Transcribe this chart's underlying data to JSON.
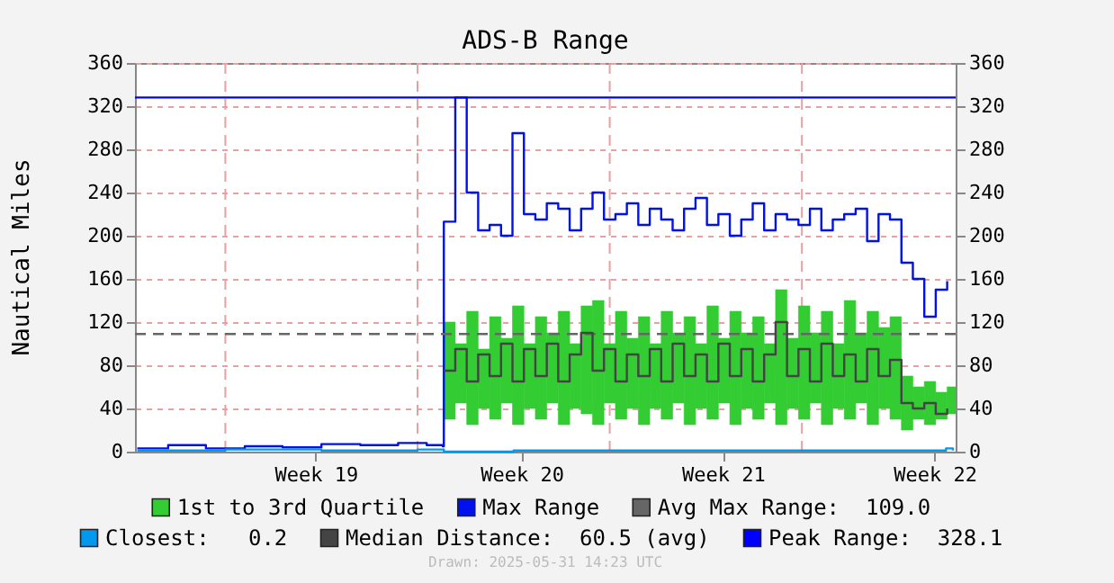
{
  "chart_data": {
    "type": "step",
    "title": "ADS-B Range",
    "ylabel": "Nautical Miles",
    "xlim": [
      "2025-05-01T17:00",
      "2025-05-31T14:23"
    ],
    "xticks": [
      {
        "value": "2025-05-08T07:00",
        "label": "Week 19"
      },
      {
        "value": "2025-05-15T19:00",
        "label": "Week 20"
      },
      {
        "value": "2025-05-23T03:00",
        "label": "Week 21"
      },
      {
        "value": "2025-05-30T20:00",
        "label": "Week 22"
      }
    ],
    "ylim": [
      0,
      360
    ],
    "yticks": [
      0,
      40,
      80,
      120,
      160,
      200,
      240,
      280,
      320,
      360
    ],
    "y2lim": [
      0,
      360
    ],
    "y2ticks": [
      0,
      40,
      80,
      120,
      160,
      200,
      240,
      280,
      320,
      360
    ],
    "grid": "y",
    "legend": "bottom",
    "ref_lines": [
      {
        "axis": "x",
        "value": "2025-05-05T00:00",
        "color": "#e8a0a0",
        "line_style": "dashed"
      },
      {
        "axis": "x",
        "value": "2025-05-12T00:00",
        "color": "#e8a0a0",
        "line_style": "dashed"
      },
      {
        "axis": "x",
        "value": "2025-05-19T00:00",
        "color": "#e8a0a0",
        "line_style": "dashed"
      },
      {
        "axis": "x",
        "value": "2025-05-26T00:00",
        "color": "#e8a0a0",
        "line_style": "dashed"
      }
    ],
    "series": [
      {
        "name": "1st to 3rd Quartile",
        "type": "bar",
        "color": "#33cc33",
        "x": [
          "2025-05-12T23:00",
          "2025-05-13T09:00",
          "2025-05-13T19:00",
          "2025-05-14T05:00",
          "2025-05-14T15:00",
          "2025-05-15T01:00",
          "2025-05-15T11:00",
          "2025-05-15T21:00",
          "2025-05-16T07:00",
          "2025-05-16T17:00",
          "2025-05-17T03:00",
          "2025-05-17T13:00",
          "2025-05-17T23:00",
          "2025-05-18T09:00",
          "2025-05-18T19:00",
          "2025-05-19T05:00",
          "2025-05-19T15:00",
          "2025-05-20T01:00",
          "2025-05-20T11:00",
          "2025-05-20T21:00",
          "2025-05-21T07:00",
          "2025-05-21T17:00",
          "2025-05-22T03:00",
          "2025-05-22T13:00",
          "2025-05-22T23:00",
          "2025-05-23T09:00",
          "2025-05-23T19:00",
          "2025-05-24T05:00",
          "2025-05-24T15:00",
          "2025-05-25T01:00",
          "2025-05-25T11:00",
          "2025-05-25T21:00",
          "2025-05-26T07:00",
          "2025-05-26T17:00",
          "2025-05-27T03:00",
          "2025-05-27T13:00",
          "2025-05-27T23:00",
          "2025-05-28T09:00",
          "2025-05-28T19:00",
          "2025-05-29T05:00",
          "2025-05-29T15:00",
          "2025-05-30T01:00",
          "2025-05-30T11:00",
          "2025-05-30T21:00",
          "2025-05-31T07:00"
        ],
        "values": [
          90,
          55,
          105,
          55,
          95,
          60,
          110,
          60,
          95,
          65,
          105,
          60,
          100,
          115,
          55,
          100,
          65,
          100,
          60,
          100,
          65,
          100,
          60,
          105,
          60,
          105,
          70,
          95,
          55,
          125,
          65,
          105,
          65,
          105,
          60,
          110,
          65,
          105,
          75,
          95,
          50,
          30,
          40,
          25,
          25
        ],
        "base": [
          30,
          45,
          25,
          40,
          30,
          45,
          25,
          40,
          30,
          45,
          25,
          40,
          35,
          25,
          45,
          30,
          40,
          25,
          40,
          30,
          45,
          25,
          40,
          30,
          45,
          25,
          40,
          30,
          45,
          25,
          40,
          30,
          45,
          25,
          40,
          30,
          45,
          25,
          40,
          30,
          20,
          30,
          25,
          30,
          35
        ]
      },
      {
        "name": "Max Range",
        "color": "#0010ee",
        "x": [
          "2025-05-01T19:00",
          "2025-05-02T22:00",
          "2025-05-04T07:00",
          "2025-05-05T17:00",
          "2025-05-07T02:00",
          "2025-05-08T12:00",
          "2025-05-09T22:00",
          "2025-05-11T07:00",
          "2025-05-12T08:00",
          "2025-05-12T22:00",
          "2025-05-12T23:00",
          "2025-05-13T09:00",
          "2025-05-13T19:00",
          "2025-05-14T05:00",
          "2025-05-14T15:00",
          "2025-05-15T01:00",
          "2025-05-15T11:00",
          "2025-05-15T21:00",
          "2025-05-16T07:00",
          "2025-05-16T17:00",
          "2025-05-17T03:00",
          "2025-05-17T13:00",
          "2025-05-17T23:00",
          "2025-05-18T09:00",
          "2025-05-18T19:00",
          "2025-05-19T05:00",
          "2025-05-19T15:00",
          "2025-05-20T01:00",
          "2025-05-20T11:00",
          "2025-05-20T21:00",
          "2025-05-21T07:00",
          "2025-05-21T17:00",
          "2025-05-22T03:00",
          "2025-05-22T13:00",
          "2025-05-22T23:00",
          "2025-05-23T09:00",
          "2025-05-23T19:00",
          "2025-05-24T05:00",
          "2025-05-24T15:00",
          "2025-05-25T01:00",
          "2025-05-25T11:00",
          "2025-05-25T21:00",
          "2025-05-26T07:00",
          "2025-05-26T17:00",
          "2025-05-27T03:00",
          "2025-05-27T13:00",
          "2025-05-27T23:00",
          "2025-05-28T09:00",
          "2025-05-28T19:00",
          "2025-05-29T05:00",
          "2025-05-29T15:00",
          "2025-05-30T01:00",
          "2025-05-30T11:00",
          "2025-05-30T21:00",
          "2025-05-31T07:00"
        ],
        "values": [
          3,
          6,
          3,
          5,
          4,
          7,
          6,
          8,
          6,
          5,
          213,
          328,
          240,
          205,
          210,
          200,
          295,
          220,
          215,
          230,
          225,
          205,
          225,
          240,
          215,
          220,
          230,
          210,
          225,
          215,
          205,
          225,
          235,
          210,
          220,
          200,
          215,
          230,
          205,
          220,
          215,
          210,
          225,
          205,
          215,
          220,
          225,
          195,
          220,
          215,
          175,
          160,
          125,
          150,
          158
        ]
      },
      {
        "name": "Avg Max Range:  109.0",
        "type": "line",
        "line_style": "dashed",
        "color": "#666666",
        "x": [
          "2025-05-01T17:00",
          "2025-05-31T14:23"
        ],
        "values": [
          109,
          109
        ]
      },
      {
        "name": "Closest:   0.2",
        "color": "#0099ee",
        "x": [
          "2025-05-01T19:00",
          "2025-05-05T00:00",
          "2025-05-08T12:00",
          "2025-05-12T00:00",
          "2025-05-12T23:00",
          "2025-05-15T12:00",
          "2025-05-19T00:00",
          "2025-05-22T12:00",
          "2025-05-26T00:00",
          "2025-05-29T12:00",
          "2025-05-31T06:00",
          "2025-05-31T12:00"
        ],
        "values": [
          1,
          2,
          1,
          2,
          0,
          1,
          1,
          1,
          1,
          1,
          3,
          1
        ]
      },
      {
        "name": "Median Distance:  60.5 (avg)",
        "color": "#444444",
        "x": [
          "2025-05-12T23:00",
          "2025-05-13T09:00",
          "2025-05-13T19:00",
          "2025-05-14T05:00",
          "2025-05-14T15:00",
          "2025-05-15T01:00",
          "2025-05-15T11:00",
          "2025-05-15T21:00",
          "2025-05-16T07:00",
          "2025-05-16T17:00",
          "2025-05-17T03:00",
          "2025-05-17T13:00",
          "2025-05-17T23:00",
          "2025-05-18T09:00",
          "2025-05-18T19:00",
          "2025-05-19T05:00",
          "2025-05-19T15:00",
          "2025-05-20T01:00",
          "2025-05-20T11:00",
          "2025-05-20T21:00",
          "2025-05-21T07:00",
          "2025-05-21T17:00",
          "2025-05-22T03:00",
          "2025-05-22T13:00",
          "2025-05-22T23:00",
          "2025-05-23T09:00",
          "2025-05-23T19:00",
          "2025-05-24T05:00",
          "2025-05-24T15:00",
          "2025-05-25T01:00",
          "2025-05-25T11:00",
          "2025-05-25T21:00",
          "2025-05-26T07:00",
          "2025-05-26T17:00",
          "2025-05-27T03:00",
          "2025-05-27T13:00",
          "2025-05-27T23:00",
          "2025-05-28T09:00",
          "2025-05-28T19:00",
          "2025-05-29T05:00",
          "2025-05-29T15:00",
          "2025-05-30T01:00",
          "2025-05-30T11:00",
          "2025-05-30T21:00",
          "2025-05-31T07:00"
        ],
        "values": [
          75,
          95,
          65,
          90,
          70,
          100,
          65,
          95,
          70,
          100,
          65,
          90,
          110,
          75,
          95,
          65,
          90,
          70,
          95,
          65,
          100,
          70,
          90,
          65,
          100,
          70,
          95,
          65,
          90,
          120,
          70,
          95,
          65,
          100,
          70,
          90,
          65,
          95,
          70,
          85,
          45,
          40,
          45,
          35,
          40
        ]
      },
      {
        "name": "Peak Range:  328.1",
        "type": "line",
        "color": "#0000ff",
        "x": [
          "2025-05-01T17:00",
          "2025-05-31T14:23"
        ],
        "values": [
          328,
          328
        ]
      }
    ],
    "annotations": [
      "Drawn: 2025-05-31 14:23 UTC"
    ]
  }
}
